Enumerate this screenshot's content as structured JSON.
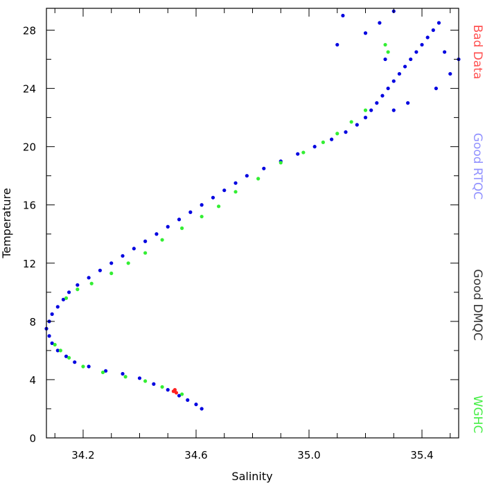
{
  "chart_data": {
    "type": "scatter",
    "title": "",
    "xlabel": "Salinity",
    "ylabel": "Temperature",
    "xlim": [
      34.07,
      35.53
    ],
    "ylim": [
      0,
      29.5
    ],
    "xticks": [
      34.2,
      34.6,
      35.0,
      35.4
    ],
    "xtick_labels": [
      "34.2",
      "34.6",
      "35.0",
      "35.4"
    ],
    "yticks": [
      0,
      4,
      8,
      12,
      16,
      20,
      24,
      28
    ],
    "ytick_labels": [
      "0",
      "4",
      "8",
      "12",
      "16",
      "20",
      "24",
      "28"
    ],
    "x_minor_step": 0.1,
    "y_minor_step": 2,
    "grid": false,
    "legend_position": "right-vertical",
    "legend": [
      {
        "label": "Bad Data",
        "color": "#ff5050"
      },
      {
        "label": "Good RTQC",
        "color": "#9090ff"
      },
      {
        "label": "Good DMQC",
        "color": "#333333"
      },
      {
        "label": "WGHC",
        "color": "#44ee44"
      }
    ],
    "series": [
      {
        "name": "Good RTQC",
        "color": "#0000e0",
        "points": [
          [
            34.62,
            2.0
          ],
          [
            34.6,
            2.3
          ],
          [
            34.57,
            2.6
          ],
          [
            34.54,
            2.9
          ],
          [
            34.5,
            3.3
          ],
          [
            34.45,
            3.7
          ],
          [
            34.4,
            4.1
          ],
          [
            34.34,
            4.4
          ],
          [
            34.28,
            4.6
          ],
          [
            34.22,
            4.9
          ],
          [
            34.17,
            5.2
          ],
          [
            34.14,
            5.6
          ],
          [
            34.11,
            6.0
          ],
          [
            34.09,
            6.5
          ],
          [
            34.08,
            7.0
          ],
          [
            34.07,
            7.5
          ],
          [
            34.08,
            8.0
          ],
          [
            34.09,
            8.5
          ],
          [
            34.11,
            9.0
          ],
          [
            34.13,
            9.5
          ],
          [
            34.15,
            10.0
          ],
          [
            34.18,
            10.5
          ],
          [
            34.22,
            11.0
          ],
          [
            34.26,
            11.5
          ],
          [
            34.3,
            12.0
          ],
          [
            34.34,
            12.5
          ],
          [
            34.38,
            13.0
          ],
          [
            34.42,
            13.5
          ],
          [
            34.46,
            14.0
          ],
          [
            34.5,
            14.5
          ],
          [
            34.54,
            15.0
          ],
          [
            34.58,
            15.5
          ],
          [
            34.62,
            16.0
          ],
          [
            34.66,
            16.5
          ],
          [
            34.7,
            17.0
          ],
          [
            34.74,
            17.5
          ],
          [
            34.78,
            18.0
          ],
          [
            34.84,
            18.5
          ],
          [
            34.9,
            19.0
          ],
          [
            34.96,
            19.5
          ],
          [
            35.02,
            20.0
          ],
          [
            35.08,
            20.5
          ],
          [
            35.13,
            21.0
          ],
          [
            35.17,
            21.5
          ],
          [
            35.2,
            22.0
          ],
          [
            35.22,
            22.5
          ],
          [
            35.24,
            23.0
          ],
          [
            35.26,
            23.5
          ],
          [
            35.28,
            24.0
          ],
          [
            35.3,
            24.5
          ],
          [
            35.32,
            25.0
          ],
          [
            35.34,
            25.5
          ],
          [
            35.36,
            26.0
          ],
          [
            35.38,
            26.5
          ],
          [
            35.4,
            27.0
          ],
          [
            35.42,
            27.5
          ],
          [
            35.44,
            28.0
          ],
          [
            35.46,
            28.5
          ],
          [
            35.3,
            29.3
          ],
          [
            35.25,
            28.5
          ],
          [
            35.2,
            27.8
          ],
          [
            35.12,
            29.0
          ],
          [
            35.1,
            27.0
          ],
          [
            35.35,
            23.0
          ],
          [
            35.45,
            24.0
          ],
          [
            35.5,
            25.0
          ],
          [
            35.53,
            26.0
          ],
          [
            35.48,
            26.5
          ],
          [
            35.27,
            26.0
          ],
          [
            35.3,
            22.5
          ]
        ],
        "note": ""
      },
      {
        "name": "WGHC",
        "color": "#33ee33",
        "points": [
          [
            34.55,
            3.0
          ],
          [
            34.48,
            3.5
          ],
          [
            34.42,
            3.9
          ],
          [
            34.35,
            4.2
          ],
          [
            34.27,
            4.5
          ],
          [
            34.2,
            4.9
          ],
          [
            34.15,
            5.5
          ],
          [
            34.12,
            6.0
          ],
          [
            34.1,
            6.4
          ],
          [
            34.14,
            9.6
          ],
          [
            34.18,
            10.2
          ],
          [
            34.23,
            10.6
          ],
          [
            34.3,
            11.3
          ],
          [
            34.36,
            12.0
          ],
          [
            34.42,
            12.7
          ],
          [
            34.48,
            13.6
          ],
          [
            34.55,
            14.4
          ],
          [
            34.62,
            15.2
          ],
          [
            34.68,
            15.9
          ],
          [
            34.74,
            16.9
          ],
          [
            34.82,
            17.8
          ],
          [
            34.9,
            18.9
          ],
          [
            34.98,
            19.6
          ],
          [
            35.05,
            20.3
          ],
          [
            35.1,
            20.9
          ],
          [
            35.15,
            21.7
          ],
          [
            35.2,
            22.5
          ],
          [
            35.28,
            26.5
          ],
          [
            35.27,
            27.0
          ]
        ]
      },
      {
        "name": "Bad Data",
        "color": "#ff2020",
        "points": [
          [
            34.52,
            3.2
          ],
          [
            34.53,
            3.1
          ],
          [
            34.525,
            3.3
          ]
        ]
      }
    ]
  }
}
